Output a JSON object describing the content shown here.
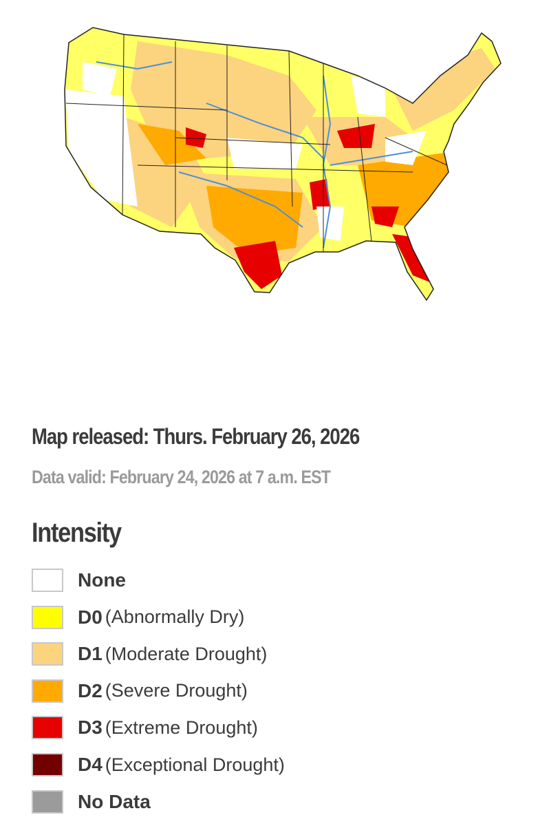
{
  "header": {
    "released": "Map released: Thurs. February 26, 2026",
    "valid": "Data valid: February 24, 2026 at 7 a.m. EST"
  },
  "legend": {
    "title": "Intensity",
    "items": [
      {
        "code": "None",
        "color": "#ffffff"
      },
      {
        "code": "D0",
        "label": "(Abnormally Dry)",
        "color": "#ffff00"
      },
      {
        "code": "D1",
        "label": "(Moderate Drought)",
        "color": "#fcd37f"
      },
      {
        "code": "D2",
        "label": "(Severe Drought)",
        "color": "#ffaa00"
      },
      {
        "code": "D3",
        "label": "(Extreme Drought)",
        "color": "#e60000"
      },
      {
        "code": "D4",
        "label": "(Exceptional Drought)",
        "color": "#730000"
      },
      {
        "code": "No Data",
        "color": "#9b9b9b"
      }
    ]
  }
}
